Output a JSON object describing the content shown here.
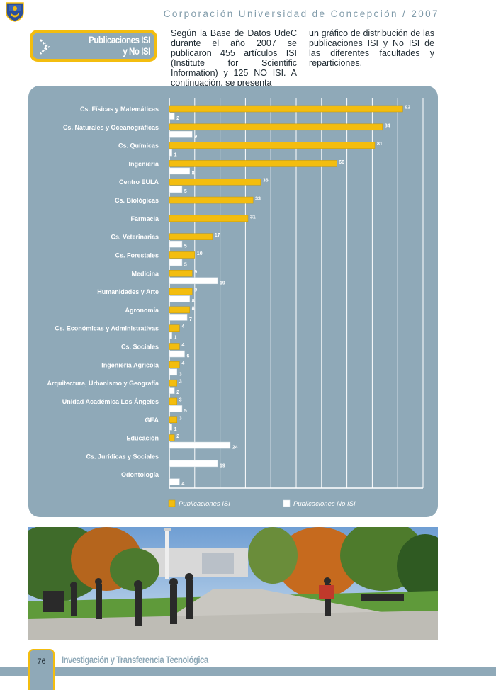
{
  "header": {
    "title": "Corporación Universidad de Concepción / 2007"
  },
  "section": {
    "title_line1": "Publicaciones ISI",
    "title_line2": "y No ISI"
  },
  "intro": {
    "col1": "Según la Base de Datos UdeC durante el año 2007 se publicaron 455 artículos ISI (Institute for Scientific Information) y 125 NO ISI. A continuación, se presenta",
    "col2": "un gráfico de distribución de las publicaciones ISI y No ISI de las diferentes facultades y reparticiones."
  },
  "chart_data": {
    "type": "bar",
    "orientation": "horizontal",
    "categories": [
      "Cs. Físicas y Matemáticas",
      "Cs. Naturales y Oceanográficas",
      "Cs. Químicas",
      "Ingeniería",
      "Centro EULA",
      "Cs. Biológicas",
      "Farmacia",
      "Cs. Veterinarias",
      "Cs. Forestales",
      "Medicina",
      "Humanidades y Arte",
      "Agronomía",
      "Cs. Económicas y Administrativas",
      "Cs. Sociales",
      "Ingeniería Agrícola",
      "Arquitectura, Urbanismo y Geografía",
      "Unidad Académica Los Ángeles",
      "GEA",
      "Educación",
      "Cs. Jurídicas y Sociales",
      "Odontología"
    ],
    "series": [
      {
        "name": "Publicaciones ISI",
        "color": "#f3bd0f",
        "values": [
          92,
          84,
          81,
          66,
          36,
          33,
          31,
          17,
          10,
          9,
          9,
          8,
          4,
          4,
          4,
          3,
          3,
          3,
          2,
          null,
          null
        ]
      },
      {
        "name": "Publicaciones No ISI",
        "color": "#ffffff",
        "values": [
          2,
          9,
          1,
          8,
          5,
          null,
          null,
          5,
          5,
          19,
          8,
          7,
          1,
          6,
          3,
          2,
          5,
          1,
          24,
          19,
          4
        ]
      }
    ],
    "xlim": [
      0,
      100
    ],
    "grid": true,
    "legend": "bottom"
  },
  "footer": {
    "page_number": "76",
    "title": "Investigación y Transferencia Tecnológica"
  }
}
